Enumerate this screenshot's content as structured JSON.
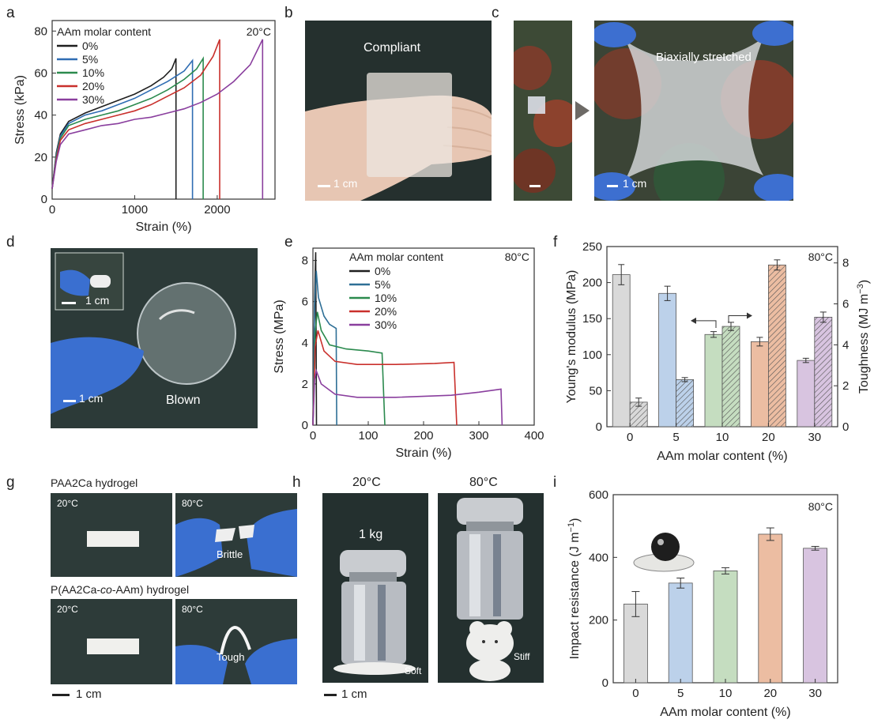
{
  "panels": {
    "a": "a",
    "b": "b",
    "c": "c",
    "d": "d",
    "e": "e",
    "f": "f",
    "g": "g",
    "h": "h",
    "i": "i"
  },
  "colors": {
    "c0": "#1f1f1f",
    "c5": "#2f6db3",
    "c10": "#2b8a4e",
    "c20": "#c9302c",
    "c30": "#8a3f9e",
    "e5": "#2e6f96",
    "bar0": "#d9d9d9",
    "bar5": "#bcd1ea",
    "bar10": "#c5ddc0",
    "bar20": "#ecbda2",
    "bar30": "#d8c4e0"
  },
  "photos": {
    "b": {
      "label": "Compliant",
      "scale": "1 cm"
    },
    "c": {
      "label": "Biaxially stretched",
      "scale": "1 cm"
    },
    "d": {
      "inset_scale": "1 cm",
      "scale": "1 cm",
      "label": "Blown"
    },
    "g": {
      "top_caption": "PAA2Ca hydrogel",
      "bottom_caption_pre": "P(AA2Ca-",
      "bottom_caption_italic": "co",
      "bottom_caption_post": "-AAm) hydrogel",
      "t20": "20°C",
      "t80": "80°C",
      "brittle": "Brittle",
      "tough": "Tough",
      "scale": "1 cm"
    },
    "h": {
      "t20": "20°C",
      "t80": "80°C",
      "weight": "1 kg",
      "soft": "Soft",
      "stiff": "Stiff",
      "scale": "1 cm"
    }
  },
  "chart_data": [
    {
      "id": "a",
      "type": "line",
      "xlabel": "Strain (%)",
      "ylabel": "Stress (kPa)",
      "xlim": [
        0,
        2700
      ],
      "ylim": [
        0,
        85
      ],
      "xticks": [
        0,
        1000,
        2000
      ],
      "yticks": [
        0,
        20,
        40,
        60,
        80
      ],
      "legend_title": "AAm molar content",
      "annotation": "20°C",
      "series": [
        {
          "name": "0%",
          "color": "#1f1f1f",
          "points": [
            [
              0,
              5
            ],
            [
              50,
              22
            ],
            [
              100,
              31
            ],
            [
              200,
              37
            ],
            [
              400,
              41
            ],
            [
              600,
              44
            ],
            [
              800,
              47
            ],
            [
              1000,
              50
            ],
            [
              1200,
              54
            ],
            [
              1350,
              58
            ],
            [
              1450,
              62
            ],
            [
              1500,
              67
            ],
            [
              1500,
              0
            ]
          ]
        },
        {
          "name": "5%",
          "color": "#2f6db3",
          "points": [
            [
              0,
              5
            ],
            [
              50,
              21
            ],
            [
              100,
              30
            ],
            [
              200,
              36
            ],
            [
              400,
              40
            ],
            [
              600,
              42
            ],
            [
              800,
              45
            ],
            [
              1000,
              48
            ],
            [
              1200,
              52
            ],
            [
              1400,
              56
            ],
            [
              1600,
              61
            ],
            [
              1700,
              66
            ],
            [
              1700,
              0
            ]
          ]
        },
        {
          "name": "10%",
          "color": "#2b8a4e",
          "points": [
            [
              0,
              5
            ],
            [
              50,
              20
            ],
            [
              100,
              29
            ],
            [
              200,
              35
            ],
            [
              400,
              38
            ],
            [
              600,
              40
            ],
            [
              800,
              42
            ],
            [
              1000,
              45
            ],
            [
              1200,
              48
            ],
            [
              1400,
              52
            ],
            [
              1600,
              57
            ],
            [
              1750,
              62
            ],
            [
              1830,
              67
            ],
            [
              1830,
              0
            ]
          ]
        },
        {
          "name": "20%",
          "color": "#c9302c",
          "points": [
            [
              0,
              5
            ],
            [
              50,
              19
            ],
            [
              100,
              28
            ],
            [
              200,
              33
            ],
            [
              400,
              36
            ],
            [
              600,
              38
            ],
            [
              800,
              40
            ],
            [
              1000,
              42
            ],
            [
              1200,
              45
            ],
            [
              1400,
              49
            ],
            [
              1600,
              53
            ],
            [
              1800,
              59
            ],
            [
              1950,
              68
            ],
            [
              2030,
              76
            ],
            [
              2030,
              0
            ]
          ]
        },
        {
          "name": "30%",
          "color": "#8a3f9e",
          "points": [
            [
              0,
              5
            ],
            [
              50,
              18
            ],
            [
              100,
              26
            ],
            [
              200,
              31
            ],
            [
              400,
              33
            ],
            [
              600,
              35
            ],
            [
              800,
              36
            ],
            [
              1000,
              38
            ],
            [
              1200,
              39
            ],
            [
              1400,
              41
            ],
            [
              1600,
              43
            ],
            [
              1800,
              46
            ],
            [
              2000,
              50
            ],
            [
              2200,
              56
            ],
            [
              2400,
              64
            ],
            [
              2550,
              76
            ],
            [
              2550,
              0
            ]
          ]
        }
      ]
    },
    {
      "id": "e",
      "type": "line",
      "xlabel": "Strain (%)",
      "ylabel": "Stress (MPa)",
      "xlim": [
        0,
        400
      ],
      "ylim": [
        0,
        8.6
      ],
      "xticks": [
        0,
        100,
        200,
        300,
        400
      ],
      "yticks": [
        0,
        2,
        4,
        6,
        8
      ],
      "legend_title": "AAm molar content",
      "annotation": "80°C",
      "series": [
        {
          "name": "0%",
          "color": "#1f1f1f",
          "points": [
            [
              0,
              0
            ],
            [
              3,
              6
            ],
            [
              5,
              8.4
            ],
            [
              6,
              2.8
            ],
            [
              6.5,
              0
            ]
          ]
        },
        {
          "name": "5%",
          "color": "#2e6f96",
          "points": [
            [
              0,
              0
            ],
            [
              3,
              5.8
            ],
            [
              6,
              7.5
            ],
            [
              10,
              6.2
            ],
            [
              20,
              5.3
            ],
            [
              30,
              4.9
            ],
            [
              42,
              4.7
            ],
            [
              43,
              0
            ]
          ]
        },
        {
          "name": "10%",
          "color": "#2b8a4e",
          "points": [
            [
              0,
              0
            ],
            [
              4,
              4.5
            ],
            [
              8,
              5.5
            ],
            [
              15,
              4.6
            ],
            [
              30,
              3.9
            ],
            [
              60,
              3.7
            ],
            [
              100,
              3.6
            ],
            [
              125,
              3.5
            ],
            [
              130,
              0
            ]
          ]
        },
        {
          "name": "20%",
          "color": "#c9302c",
          "points": [
            [
              0,
              0
            ],
            [
              4,
              3.8
            ],
            [
              9,
              4.6
            ],
            [
              20,
              3.6
            ],
            [
              40,
              3.1
            ],
            [
              80,
              2.95
            ],
            [
              150,
              2.95
            ],
            [
              220,
              3.0
            ],
            [
              255,
              3.05
            ],
            [
              260,
              0
            ]
          ]
        },
        {
          "name": "30%",
          "color": "#8a3f9e",
          "points": [
            [
              0,
              0
            ],
            [
              3,
              2.2
            ],
            [
              6,
              2.65
            ],
            [
              15,
              2.0
            ],
            [
              40,
              1.5
            ],
            [
              80,
              1.35
            ],
            [
              150,
              1.35
            ],
            [
              250,
              1.45
            ],
            [
              300,
              1.6
            ],
            [
              340,
              1.75
            ],
            [
              342,
              0
            ]
          ]
        }
      ]
    },
    {
      "id": "f",
      "type": "bar",
      "categories": [
        "0",
        "5",
        "10",
        "20",
        "30"
      ],
      "xlabel": "AAm molar content (%)",
      "ylabel": "Young's modulus (MPa)",
      "y2label": "Toughness (MJ m",
      "y2label_sup": "−3",
      "y2label_end": ")",
      "ylim": [
        0,
        250
      ],
      "y2lim": [
        0,
        8.8
      ],
      "yticks": [
        0,
        50,
        100,
        150,
        200,
        250
      ],
      "y2ticks": [
        0,
        2,
        4,
        6,
        8
      ],
      "annotation": "80°C",
      "series": [
        {
          "name": "Young's modulus",
          "axis": "left",
          "values": [
            211,
            185,
            128,
            118,
            92
          ],
          "errors": [
            14,
            10,
            4,
            6,
            3
          ]
        },
        {
          "name": "Toughness",
          "axis": "right",
          "values": [
            1.2,
            2.3,
            4.9,
            7.9,
            5.35
          ],
          "errors": [
            0.2,
            0.1,
            0.2,
            0.25,
            0.25
          ]
        }
      ]
    },
    {
      "id": "i",
      "type": "bar",
      "categories": [
        "0",
        "5",
        "10",
        "20",
        "30"
      ],
      "xlabel": "AAm molar content (%)",
      "ylabel": "Impact resistance (J m",
      "ylabel_sup": "−1",
      "ylabel_end": ")",
      "ylim": [
        0,
        600
      ],
      "yticks": [
        0,
        200,
        400,
        600
      ],
      "annotation": "80°C",
      "values": [
        251,
        318,
        357,
        474,
        429
      ],
      "errors": [
        40,
        16,
        10,
        20,
        6
      ]
    }
  ]
}
